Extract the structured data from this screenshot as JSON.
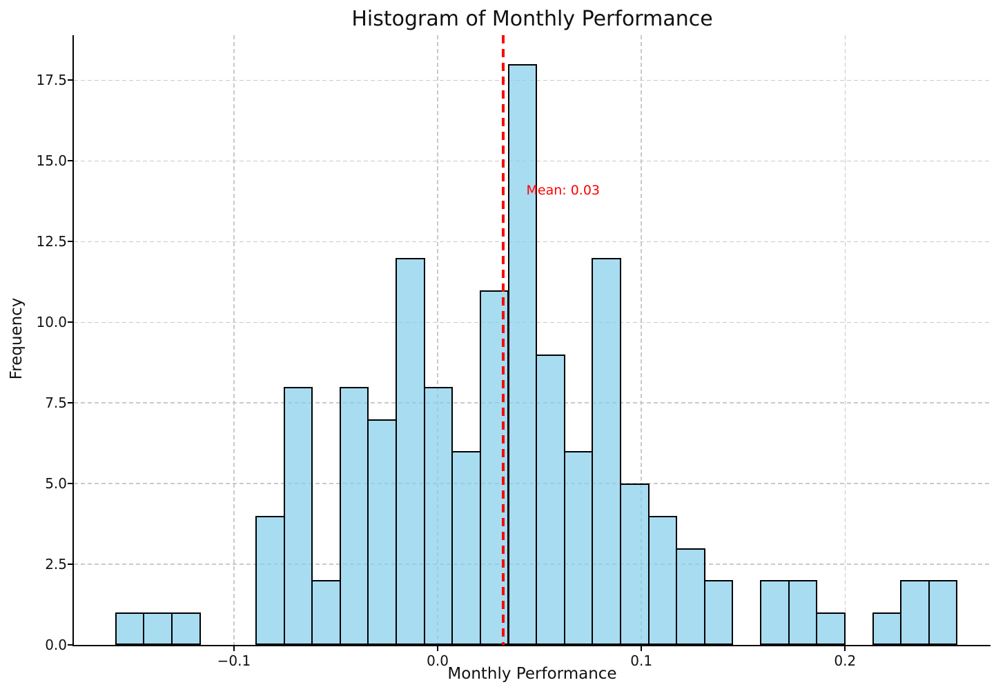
{
  "chart_data": {
    "type": "bar",
    "subtype": "histogram",
    "title": "Histogram of Monthly Performance",
    "xlabel": "Monthly Performance",
    "ylabel": "Frequency",
    "bin_start": -0.158,
    "bin_width": 0.013765,
    "counts": [
      1,
      1,
      1,
      0,
      0,
      4,
      8,
      2,
      8,
      7,
      12,
      8,
      6,
      11,
      18,
      9,
      6,
      12,
      5,
      4,
      3,
      2,
      0,
      2,
      2,
      1,
      0,
      1,
      2,
      2
    ],
    "mean": 0.03,
    "mean_label": "Mean: 0.03",
    "mean_line_x": 0.032,
    "xlim": [
      -0.1786,
      0.2714
    ],
    "ylim": [
      0,
      18.9
    ],
    "xticks": [
      {
        "value": -0.1,
        "label": "−0.1"
      },
      {
        "value": 0.0,
        "label": "0.0"
      },
      {
        "value": 0.1,
        "label": "0.1"
      },
      {
        "value": 0.2,
        "label": "0.2"
      }
    ],
    "yticks": [
      {
        "value": 0.0,
        "label": "0.0"
      },
      {
        "value": 2.5,
        "label": "2.5"
      },
      {
        "value": 5.0,
        "label": "5.0"
      },
      {
        "value": 7.5,
        "label": "7.5"
      },
      {
        "value": 10.0,
        "label": "10.0"
      },
      {
        "value": 12.5,
        "label": "12.5"
      },
      {
        "value": 15.0,
        "label": "15.0"
      },
      {
        "value": 17.5,
        "label": "17.5"
      }
    ],
    "grid": true,
    "legend": false,
    "colors": {
      "bar_fill": "#87ceeb",
      "bar_fill_alpha": 0.72,
      "bar_edge": "#000000",
      "mean_line": "#ff0000",
      "grid": "#c9c9c9",
      "text": "#111111"
    }
  }
}
